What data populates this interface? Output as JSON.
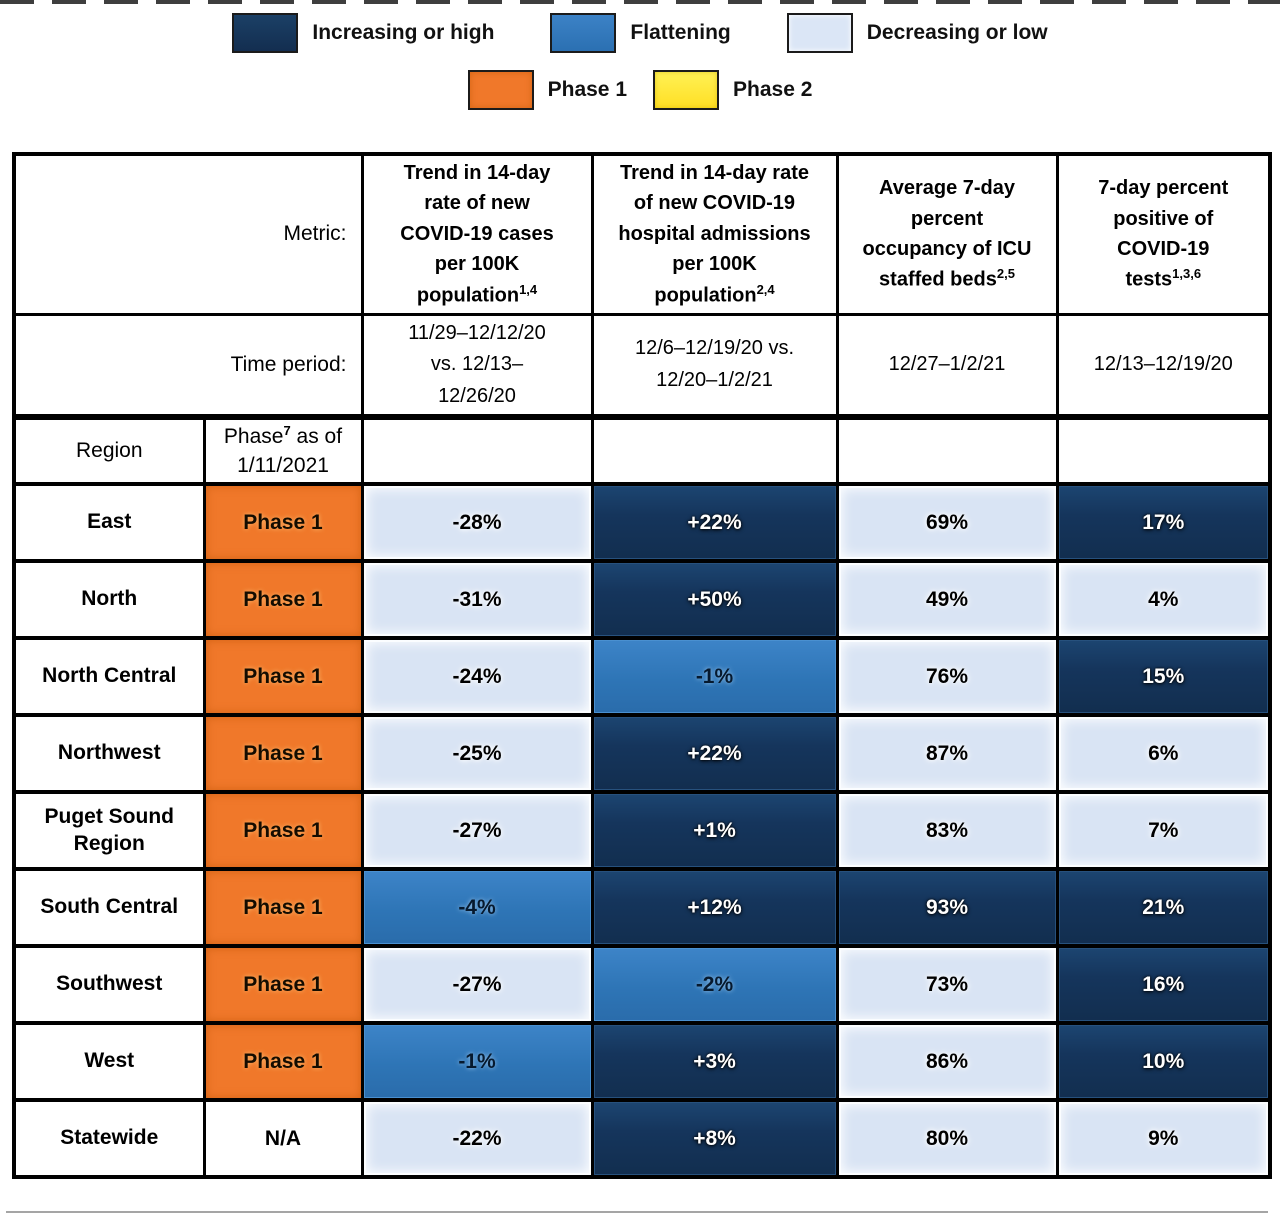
{
  "legend": {
    "trend_items": [
      {
        "label": "Increasing or high",
        "color": "#15355C"
      },
      {
        "label": "Flattening",
        "color": "#2E75B6"
      },
      {
        "label": "Decreasing or low",
        "color": "#D9E4F4"
      }
    ],
    "phase_items": [
      {
        "label": "Phase 1",
        "color": "#F0782A"
      },
      {
        "label": "Phase 2",
        "color": "#FFE335"
      }
    ]
  },
  "table": {
    "metric_label": "Metric:",
    "time_label": "Time period:",
    "region_header": "Region",
    "phase_header": {
      "pre": "Phase",
      "sup": "7",
      "post": " as of\n1/11/2021"
    },
    "columns": [
      {
        "metric": "Trend in 14-day\nrate of new\nCOVID-19 cases\nper 100K\npopulation",
        "sup": "1,4",
        "period": "11/29–12/12/20\nvs. 12/13–\n12/26/20"
      },
      {
        "metric": "Trend in 14-day rate\nof new COVID-19\nhospital admissions\nper 100K\npopulation",
        "sup": "2,4",
        "period": "12/6–12/19/20 vs.\n12/20–1/2/21"
      },
      {
        "metric": "Average 7-day\npercent\noccupancy of ICU\nstaffed beds",
        "sup": "2,5",
        "period": "12/27–1/2/21"
      },
      {
        "metric": "7-day percent\npositive of\nCOVID-19\ntests",
        "sup": "1,3,6",
        "period": "12/13–12/19/20"
      }
    ],
    "rows": [
      {
        "region": "East",
        "phase": {
          "text": "Phase 1",
          "level": "phase1"
        },
        "cells": [
          {
            "value": "-28%",
            "level": "low"
          },
          {
            "value": "+22%",
            "level": "high"
          },
          {
            "value": "69%",
            "level": "low"
          },
          {
            "value": "17%",
            "level": "high"
          }
        ]
      },
      {
        "region": "North",
        "phase": {
          "text": "Phase 1",
          "level": "phase1"
        },
        "cells": [
          {
            "value": "-31%",
            "level": "low"
          },
          {
            "value": "+50%",
            "level": "high"
          },
          {
            "value": "49%",
            "level": "low"
          },
          {
            "value": "4%",
            "level": "low"
          }
        ]
      },
      {
        "region": "North Central",
        "phase": {
          "text": "Phase 1",
          "level": "phase1"
        },
        "cells": [
          {
            "value": "-24%",
            "level": "low"
          },
          {
            "value": "-1%",
            "level": "flat"
          },
          {
            "value": "76%",
            "level": "low"
          },
          {
            "value": "15%",
            "level": "high"
          }
        ]
      },
      {
        "region": "Northwest",
        "phase": {
          "text": "Phase 1",
          "level": "phase1"
        },
        "cells": [
          {
            "value": "-25%",
            "level": "low"
          },
          {
            "value": "+22%",
            "level": "high"
          },
          {
            "value": "87%",
            "level": "low"
          },
          {
            "value": "6%",
            "level": "low"
          }
        ]
      },
      {
        "region": "Puget Sound Region",
        "phase": {
          "text": "Phase 1",
          "level": "phase1"
        },
        "cells": [
          {
            "value": "-27%",
            "level": "low"
          },
          {
            "value": "+1%",
            "level": "high"
          },
          {
            "value": "83%",
            "level": "low"
          },
          {
            "value": "7%",
            "level": "low"
          }
        ]
      },
      {
        "region": "South Central",
        "phase": {
          "text": "Phase 1",
          "level": "phase1"
        },
        "cells": [
          {
            "value": "-4%",
            "level": "flat"
          },
          {
            "value": "+12%",
            "level": "high"
          },
          {
            "value": "93%",
            "level": "high"
          },
          {
            "value": "21%",
            "level": "high"
          }
        ]
      },
      {
        "region": "Southwest",
        "phase": {
          "text": "Phase 1",
          "level": "phase1"
        },
        "cells": [
          {
            "value": "-27%",
            "level": "low"
          },
          {
            "value": "-2%",
            "level": "flat"
          },
          {
            "value": "73%",
            "level": "low"
          },
          {
            "value": "16%",
            "level": "high"
          }
        ]
      },
      {
        "region": "West",
        "phase": {
          "text": "Phase 1",
          "level": "phase1"
        },
        "cells": [
          {
            "value": "-1%",
            "level": "flat"
          },
          {
            "value": "+3%",
            "level": "high"
          },
          {
            "value": "86%",
            "level": "low"
          },
          {
            "value": "10%",
            "level": "high"
          }
        ]
      },
      {
        "region": "Statewide",
        "phase": {
          "text": "N/A",
          "level": "na"
        },
        "cells": [
          {
            "value": "-22%",
            "level": "low"
          },
          {
            "value": "+8%",
            "level": "high"
          },
          {
            "value": "80%",
            "level": "low"
          },
          {
            "value": "9%",
            "level": "low"
          }
        ]
      }
    ]
  }
}
